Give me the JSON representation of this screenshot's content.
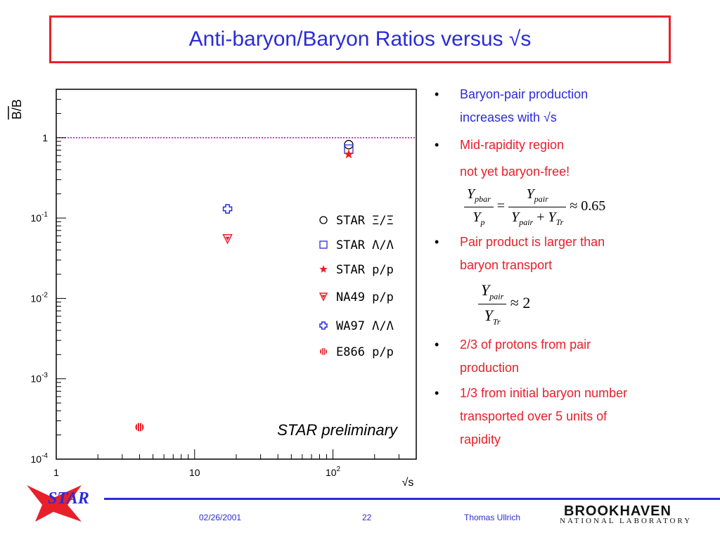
{
  "slide": {
    "title": "Anti-baryon/Baryon Ratios versus √s",
    "footer_date": "02/26/2001",
    "footer_page": "22",
    "footer_author": "Thomas Ullrich",
    "logo_star_text": "STAR",
    "logo_bnl_main": "BROOKHAVEN",
    "logo_bnl_sub": "NATIONAL LABORATORY"
  },
  "bullets": [
    {
      "lines": [
        "Baryon-pair production",
        "increases with √s"
      ],
      "color": "#2b2bd8"
    },
    {
      "lines": [
        "Mid-rapidity region"
      ],
      "color": "#e8202a"
    },
    {
      "lines": [
        "not yet baryon-free!"
      ],
      "color": "#e8202a"
    },
    {
      "lines": [
        "Pair product is larger than",
        "baryon transport"
      ],
      "color": "#e8202a"
    },
    {
      "lines": [
        "2/3 of protons from pair",
        "production"
      ],
      "color": "#e8202a"
    },
    {
      "lines": [
        "1/3 from initial baryon number",
        "transported over 5 units of",
        "rapidity"
      ],
      "color": "#e8202a"
    }
  ],
  "equations": {
    "eq1": {
      "num_left": "Y",
      "num_left_sub": "pbar",
      "den_left": "Y",
      "den_left_sub": "p",
      "num_right": "Y",
      "num_right_sub": "pair",
      "den_right_a": "Y",
      "den_right_a_sub": "pair",
      "den_right_b": "Y",
      "den_right_b_sub": "Tr",
      "result": "≈ 0.65"
    },
    "eq2": {
      "num": "Y",
      "num_sub": "pair",
      "den": "Y",
      "den_sub": "Tr",
      "result": "≈ 2"
    }
  },
  "chart_data": {
    "type": "scatter",
    "ylabel": "B/B",
    "xlabel": "√s",
    "x_scale": "log",
    "y_scale": "log",
    "xlim": [
      1,
      400
    ],
    "ylim": [
      0.0001,
      4
    ],
    "x_ticks": [
      {
        "value": 1,
        "label": "1"
      },
      {
        "value": 10,
        "label": "10"
      },
      {
        "value": 100,
        "label": "10",
        "sup": "2"
      }
    ],
    "y_ticks": [
      {
        "value": 1,
        "label": "1"
      },
      {
        "value": 0.1,
        "label": "10",
        "sup": "-1"
      },
      {
        "value": 0.01,
        "label": "10",
        "sup": "-2"
      },
      {
        "value": 0.001,
        "label": "10",
        "sup": "-3"
      },
      {
        "value": 0.0001,
        "label": "10",
        "sup": "-4"
      }
    ],
    "reference_line": {
      "y": 1,
      "color": "#c000c0",
      "style": "dotted"
    },
    "annotation": "STAR preliminary",
    "series": [
      {
        "name": "STAR Ξ/Ξ",
        "marker": "circle",
        "color": "#000000",
        "points": [
          {
            "x": 130,
            "y": 0.82
          }
        ]
      },
      {
        "name": "STAR Λ/Λ",
        "marker": "square",
        "color": "#2b2bd8",
        "points": [
          {
            "x": 130,
            "y": 0.72
          }
        ]
      },
      {
        "name": "STAR p/p",
        "marker": "star",
        "color": "#e8202a",
        "points": [
          {
            "x": 130,
            "y": 0.62
          }
        ]
      },
      {
        "name": "NA49 p/p",
        "marker": "triangle-down",
        "color": "#e8202a",
        "points": [
          {
            "x": 17.3,
            "y": 0.055
          }
        ]
      },
      {
        "name": "WA97 Λ/Λ",
        "marker": "cross",
        "color": "#2b2bd8",
        "points": [
          {
            "x": 17.3,
            "y": 0.13
          }
        ]
      },
      {
        "name": "E866 p/p",
        "marker": "hatched-circle",
        "color": "#e8202a",
        "points": [
          {
            "x": 4.0,
            "y": 0.00025
          }
        ]
      }
    ]
  }
}
